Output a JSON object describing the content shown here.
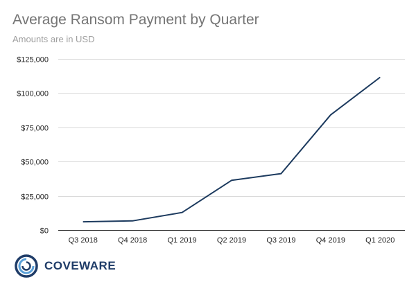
{
  "chart_data": {
    "type": "line",
    "title": "Average Ransom Payment by Quarter",
    "subtitle": "Amounts are in USD",
    "xlabel": "",
    "ylabel": "",
    "categories": [
      "Q3 2018",
      "Q4 2018",
      "Q1 2019",
      "Q2 2019",
      "Q3 2019",
      "Q4 2019",
      "Q1 2020"
    ],
    "series": [
      {
        "values": [
          6000,
          6700,
          12800,
          36300,
          41200,
          84100,
          111600
        ]
      }
    ],
    "ylim": [
      0,
      125000
    ],
    "yticks": [
      0,
      25000,
      50000,
      75000,
      100000,
      125000
    ],
    "ytick_labels": [
      "$0",
      "$25,000",
      "$50,000",
      "$75,000",
      "$100,000",
      "$125,000"
    ],
    "grid": true,
    "legend": "none",
    "line_color": "#1c3a5e",
    "grid_color": "#d9d9d9"
  },
  "brand": {
    "name": "COVEWARE",
    "color": "#1f3c68",
    "icon": "coveware-logo-icon"
  }
}
